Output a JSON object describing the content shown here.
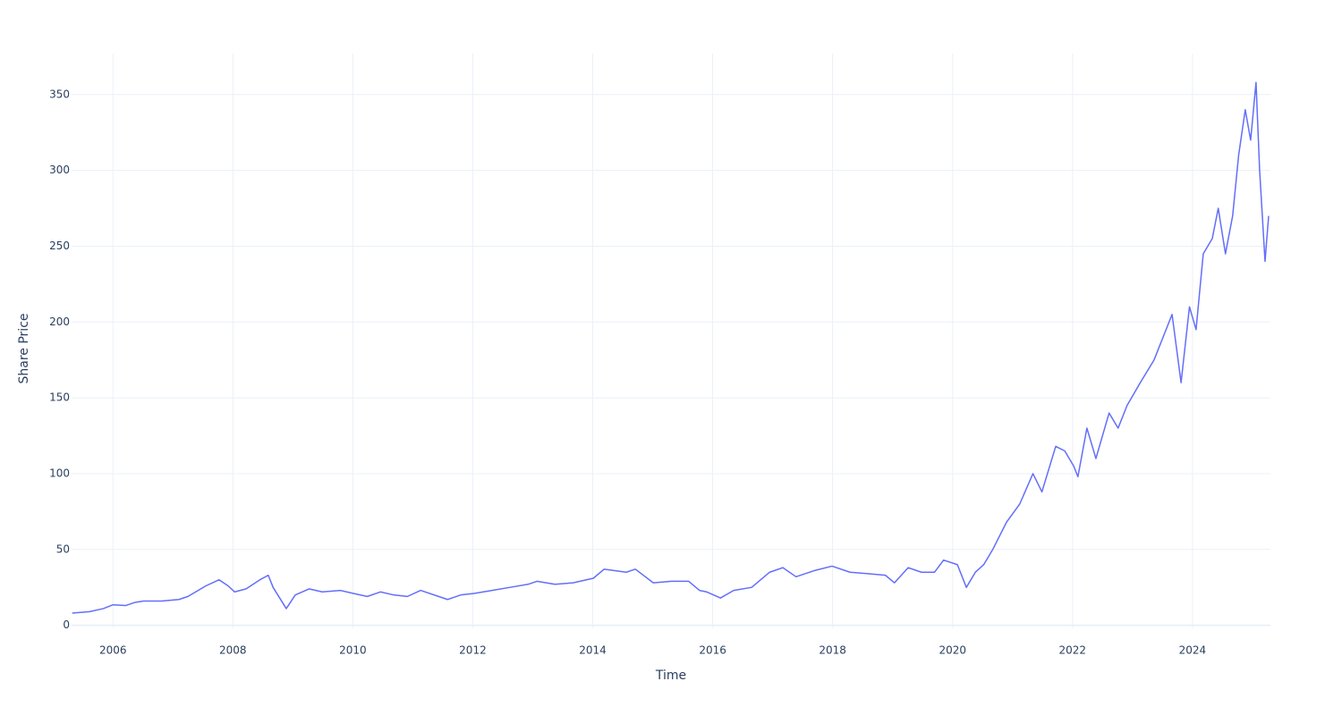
{
  "chart_data": {
    "type": "line",
    "x_label": "Time",
    "y_label": "Share Price",
    "color": "#636efa",
    "grid": true,
    "xlim": [
      2005.31,
      2025.3
    ],
    "ylim": [
      -2,
      377
    ],
    "xticks": [
      2006,
      2008,
      2010,
      2012,
      2014,
      2016,
      2018,
      2020,
      2022,
      2024
    ],
    "yticks": [
      0,
      50,
      100,
      150,
      200,
      250,
      300,
      350
    ],
    "x": [
      2005.32,
      2005.61,
      2005.84,
      2006.0,
      2006.21,
      2006.36,
      2006.51,
      2006.81,
      2007.1,
      2007.25,
      2007.55,
      2007.77,
      2007.92,
      2008.03,
      2008.22,
      2008.45,
      2008.59,
      2008.67,
      2008.89,
      2009.04,
      2009.27,
      2009.49,
      2009.79,
      2010.01,
      2010.24,
      2010.46,
      2010.68,
      2010.91,
      2011.13,
      2011.43,
      2011.58,
      2011.8,
      2012.02,
      2012.32,
      2012.62,
      2012.92,
      2013.07,
      2013.37,
      2013.67,
      2014.01,
      2014.19,
      2014.56,
      2014.71,
      2015.01,
      2015.31,
      2015.6,
      2015.78,
      2015.9,
      2016.13,
      2016.35,
      2016.65,
      2016.95,
      2017.17,
      2017.39,
      2017.69,
      2017.99,
      2018.29,
      2018.59,
      2018.88,
      2019.03,
      2019.26,
      2019.48,
      2019.7,
      2019.85,
      2020.08,
      2020.23,
      2020.38,
      2020.52,
      2020.67,
      2020.9,
      2021.12,
      2021.34,
      2021.49,
      2021.72,
      2021.87,
      2022.02,
      2022.09,
      2022.24,
      2022.39,
      2022.61,
      2022.76,
      2022.91,
      2023.13,
      2023.36,
      2023.51,
      2023.66,
      2023.81,
      2023.95,
      2024.06,
      2024.18,
      2024.33,
      2024.43,
      2024.55,
      2024.67,
      2024.77,
      2024.88,
      2024.97,
      2025.06,
      2025.12,
      2025.21,
      2025.27
    ],
    "values": [
      8,
      9,
      11,
      13.5,
      13,
      15,
      16,
      16,
      17,
      19,
      26,
      30,
      26,
      22,
      24,
      30,
      33,
      25,
      11,
      20,
      24,
      22,
      23,
      21,
      19,
      22,
      20,
      19,
      23,
      19,
      17,
      20,
      21,
      23,
      25,
      27,
      29,
      27,
      28,
      31,
      37,
      35,
      37,
      28,
      29,
      29,
      23,
      22,
      18,
      23,
      25,
      35,
      38,
      32,
      36,
      39,
      35,
      34,
      33,
      28,
      38,
      35,
      35,
      43,
      40,
      25,
      35,
      40,
      50,
      68,
      80,
      100,
      88,
      118,
      115,
      105,
      98,
      130,
      110,
      140,
      130,
      145,
      160,
      175,
      190,
      205,
      160,
      210,
      195,
      245,
      255,
      275,
      245,
      270,
      310,
      340,
      320,
      358,
      300,
      240,
      270
    ]
  }
}
